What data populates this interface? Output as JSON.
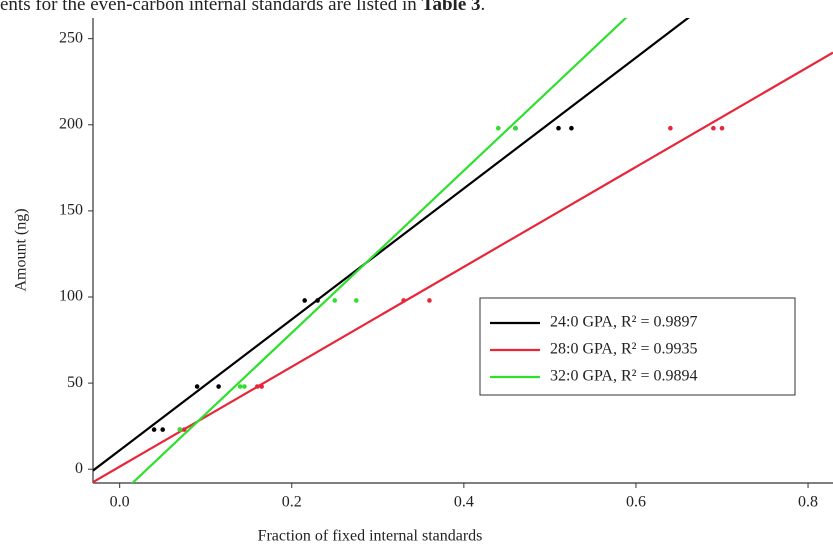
{
  "header_text": {
    "start": "ents for the even-carbon internal standards are listed in ",
    "bold": "Table 3",
    "end": "."
  },
  "chart_data": {
    "type": "scatter",
    "xlabel": "Fraction of fixed internal standards",
    "ylabel": "Amount (ng)",
    "xlim": [
      -0.031,
      0.829
    ],
    "ylim": [
      -8,
      262
    ],
    "xticks": [
      {
        "value": 0,
        "label": "0.0"
      },
      0.2,
      0.4,
      0.6,
      0.8
    ],
    "yticks": [
      0,
      50,
      100,
      150,
      200,
      250
    ],
    "legend": "lower right",
    "series": [
      {
        "name": "24:0 GPA, R² = 0.9897",
        "color": "#000000",
        "x": [
          0.04,
          0.05,
          0.09,
          0.115,
          0.215,
          0.23,
          0.46,
          0.51,
          0.525
        ],
        "values": [
          23,
          23,
          48,
          48,
          98,
          98,
          198,
          198,
          198
        ],
        "fit_slope": 380,
        "fit_intercept": 11
      },
      {
        "name": "28:0 GPA, R² = 0.9935",
        "color": "#e8263a",
        "x": [
          0.07,
          0.075,
          0.16,
          0.165,
          0.33,
          0.36,
          0.64,
          0.69,
          0.7
        ],
        "values": [
          23,
          23,
          48,
          48,
          98,
          98,
          198,
          198,
          198
        ],
        "fit_slope": 290,
        "fit_intercept": 1.5
      },
      {
        "name": "32:0 GPA, R² = 0.9894",
        "color": "#2ee02e",
        "x": [
          0.07,
          0.14,
          0.145,
          0.25,
          0.275,
          0.44,
          0.46
        ],
        "values": [
          23,
          48,
          48,
          98,
          98,
          198,
          198
        ],
        "fit_slope": 471,
        "fit_intercept": -15
      }
    ]
  }
}
